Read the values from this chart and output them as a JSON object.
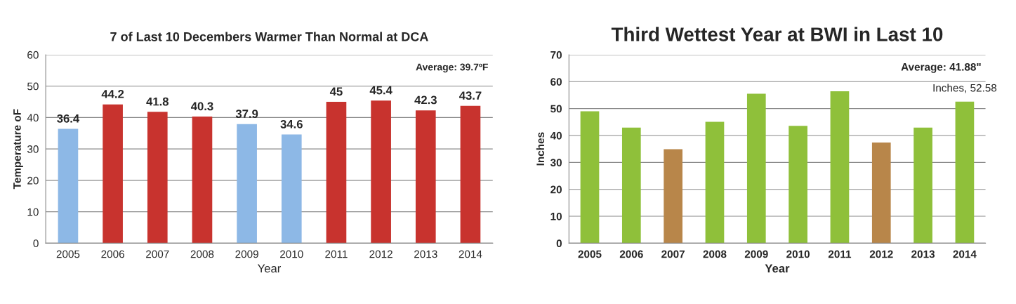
{
  "chart_data": [
    {
      "type": "bar",
      "title": "7 of Last 10 Decembers Warmer Than Normal at DCA",
      "xlabel": "Year",
      "ylabel": "Temperature oF",
      "categories": [
        "2005",
        "2006",
        "2007",
        "2008",
        "2009",
        "2010",
        "2011",
        "2012",
        "2013",
        "2014"
      ],
      "values": [
        36.4,
        44.2,
        41.8,
        40.3,
        37.9,
        34.6,
        45,
        45.4,
        42.3,
        43.7
      ],
      "colors": [
        "#8db8e6",
        "#c8332e",
        "#c8332e",
        "#c8332e",
        "#8db8e6",
        "#8db8e6",
        "#c8332e",
        "#c8332e",
        "#c8332e",
        "#c8332e"
      ],
      "data_labels": true,
      "ylim": [
        0,
        60
      ],
      "yticks": [
        0,
        10,
        20,
        30,
        40,
        50,
        60
      ],
      "grid": "y",
      "legend": false,
      "annotations": [
        "Average: 39.7ºF"
      ]
    },
    {
      "type": "bar",
      "title": "Third Wettest Year at BWI in Last 10",
      "xlabel": "Year",
      "ylabel": "Inches",
      "categories": [
        "2005",
        "2006",
        "2007",
        "2008",
        "2009",
        "2010",
        "2011",
        "2012",
        "2013",
        "2014"
      ],
      "values": [
        49.0,
        42.9,
        34.9,
        45.1,
        55.5,
        43.6,
        56.4,
        37.4,
        42.9,
        52.58
      ],
      "colors": [
        "#8fc03a",
        "#8fc03a",
        "#b8864a",
        "#8fc03a",
        "#8fc03a",
        "#8fc03a",
        "#8fc03a",
        "#b8864a",
        "#8fc03a",
        "#8fc03a"
      ],
      "value_labels": [
        null,
        null,
        null,
        null,
        null,
        null,
        null,
        null,
        null,
        "Inches, 52.58"
      ],
      "ylim": [
        0,
        70
      ],
      "yticks": [
        0,
        10,
        20,
        30,
        40,
        50,
        60,
        70
      ],
      "grid": "y",
      "legend": false,
      "annotations": [
        "Average: 41.88\""
      ]
    }
  ]
}
